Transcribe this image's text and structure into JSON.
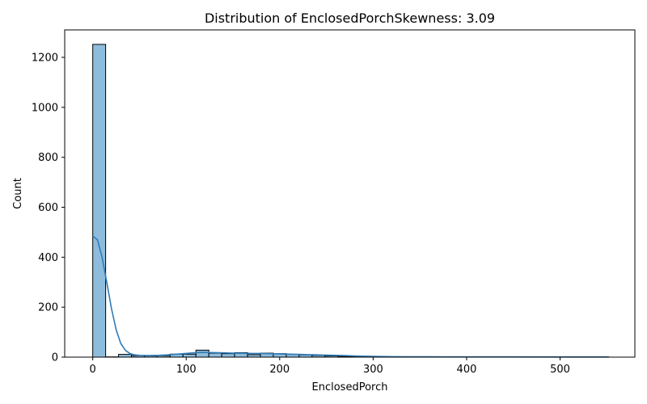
{
  "chart_data": {
    "type": "bar",
    "title": "Distribution of EnclosedPorchSkewness: 3.09",
    "xlabel": "EnclosedPorch",
    "ylabel": "Count",
    "xlim": [
      -30,
      580
    ],
    "ylim": [
      0,
      1310
    ],
    "x_ticks": [
      0,
      100,
      200,
      300,
      400,
      500
    ],
    "y_ticks": [
      0,
      200,
      400,
      600,
      800,
      1000,
      1200
    ],
    "bin_edges": [
      0,
      13.8,
      27.6,
      41.4,
      55.2,
      69.0,
      82.8,
      96.6,
      110.4,
      124.2,
      138.0,
      151.8,
      165.6,
      179.4,
      193.2,
      207.0,
      220.8,
      234.6,
      248.4,
      262.2,
      276.0,
      289.8,
      303.6,
      317.4,
      331.2,
      345.0,
      358.8,
      372.6,
      386.4,
      400.2,
      414.0,
      427.8,
      441.6,
      455.4,
      469.2,
      483.0,
      496.8,
      510.6,
      524.4,
      538.2,
      552.0
    ],
    "counts": [
      1252,
      1,
      11,
      6,
      5,
      6,
      12,
      12,
      28,
      16,
      14,
      18,
      10,
      16,
      14,
      11,
      9,
      7,
      5,
      3,
      2,
      1,
      1,
      1,
      0,
      1,
      0,
      0,
      1,
      0,
      1,
      0,
      0,
      1,
      0,
      0,
      1,
      0,
      0,
      1
    ],
    "kde": {
      "x": [
        0,
        5,
        10,
        15,
        20,
        25,
        30,
        35,
        40,
        45,
        50,
        60,
        70,
        80,
        90,
        100,
        110,
        120,
        130,
        140,
        150,
        160,
        170,
        180,
        190,
        200,
        210,
        220,
        230,
        240,
        250,
        260,
        270,
        280,
        290,
        300,
        320,
        340,
        360,
        380,
        400,
        450,
        500,
        552
      ],
      "y": [
        485,
        470,
        400,
        300,
        195,
        110,
        55,
        27,
        14,
        9,
        7,
        6,
        7,
        9,
        12,
        15,
        18,
        19,
        18,
        17,
        16,
        16,
        15,
        15,
        14,
        13,
        12,
        11,
        10,
        9,
        8,
        7,
        6,
        5,
        4,
        3,
        2,
        1.6,
        1.3,
        1.1,
        1,
        1,
        0.8,
        0.6
      ]
    },
    "bar_color": "#8ebcdc",
    "bar_edge_color": "#000000",
    "kde_color": "#2f7bb7",
    "grid": false,
    "legend": "none"
  }
}
